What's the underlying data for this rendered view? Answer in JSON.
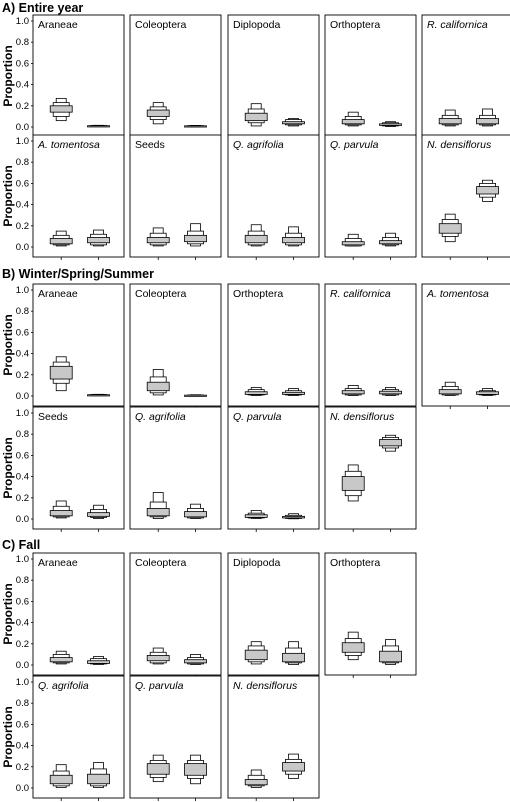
{
  "chart_data": {
    "type": "box",
    "ylabel": "Proportion",
    "y_ticks": [
      "1.0",
      "0.8",
      "0.6",
      "0.4",
      "0.2",
      "0.0"
    ],
    "ylim": [
      0,
      1.0
    ],
    "sections": [
      {
        "title": "A) Entire year",
        "rows": [
          [
            {
              "name": "Araneae",
              "italic": false,
              "boxes": [
                [
                  0.06,
                  0.1,
                  0.14,
                  0.2,
                  0.23,
                  0.27
                ],
                [
                  0.005,
                  0.008,
                  0.01,
                  0.012,
                  0.014,
                  0.016
                ]
              ]
            },
            {
              "name": "Coleoptera",
              "italic": false,
              "boxes": [
                [
                  0.03,
                  0.07,
                  0.1,
                  0.16,
                  0.19,
                  0.23
                ],
                [
                  0.004,
                  0.007,
                  0.009,
                  0.011,
                  0.013,
                  0.015
                ]
              ]
            },
            {
              "name": "Diplopoda",
              "italic": false,
              "boxes": [
                [
                  0.01,
                  0.04,
                  0.06,
                  0.13,
                  0.17,
                  0.22
                ],
                [
                  0.01,
                  0.02,
                  0.03,
                  0.05,
                  0.07,
                  0.08
                ]
              ]
            },
            {
              "name": "Orthoptera",
              "italic": false,
              "boxes": [
                [
                  0.01,
                  0.02,
                  0.03,
                  0.07,
                  0.1,
                  0.14
                ],
                [
                  0.005,
                  0.01,
                  0.015,
                  0.03,
                  0.04,
                  0.05
                ]
              ]
            },
            {
              "name": "R. californica",
              "italic": true,
              "boxes": [
                [
                  0.01,
                  0.02,
                  0.03,
                  0.08,
                  0.11,
                  0.16
                ],
                [
                  0.01,
                  0.02,
                  0.03,
                  0.08,
                  0.11,
                  0.17
                ]
              ]
            }
          ],
          [
            {
              "name": "A. tomentosa",
              "italic": true,
              "boxes": [
                [
                  0.01,
                  0.02,
                  0.03,
                  0.08,
                  0.11,
                  0.15
                ],
                [
                  0.01,
                  0.02,
                  0.04,
                  0.09,
                  0.12,
                  0.16
                ]
              ]
            },
            {
              "name": "Seeds",
              "italic": false,
              "boxes": [
                [
                  0.01,
                  0.02,
                  0.04,
                  0.09,
                  0.13,
                  0.18
                ],
                [
                  0.01,
                  0.03,
                  0.05,
                  0.11,
                  0.15,
                  0.22
                ]
              ]
            },
            {
              "name": "Q. agrifolia",
              "italic": true,
              "boxes": [
                [
                  0.01,
                  0.02,
                  0.04,
                  0.11,
                  0.15,
                  0.21
                ],
                [
                  0.01,
                  0.02,
                  0.04,
                  0.09,
                  0.13,
                  0.19
                ]
              ]
            },
            {
              "name": "Q. parvula",
              "italic": true,
              "boxes": [
                [
                  0.01,
                  0.01,
                  0.02,
                  0.05,
                  0.08,
                  0.12
                ],
                [
                  0.01,
                  0.02,
                  0.03,
                  0.06,
                  0.09,
                  0.13
                ]
              ]
            },
            {
              "name": "N. densiflorus",
              "italic": true,
              "boxes": [
                [
                  0.05,
                  0.1,
                  0.13,
                  0.22,
                  0.26,
                  0.31
                ],
                [
                  0.43,
                  0.47,
                  0.5,
                  0.57,
                  0.6,
                  0.63
                ]
              ]
            }
          ]
        ]
      },
      {
        "title": "B) Winter/Spring/Summer",
        "rows": [
          [
            {
              "name": "Araneae",
              "italic": false,
              "boxes": [
                [
                  0.05,
                  0.12,
                  0.16,
                  0.28,
                  0.32,
                  0.37
                ],
                [
                  0.005,
                  0.008,
                  0.01,
                  0.012,
                  0.014,
                  0.016
                ]
              ]
            },
            {
              "name": "Coleoptera",
              "italic": false,
              "boxes": [
                [
                  0.01,
                  0.03,
                  0.05,
                  0.13,
                  0.18,
                  0.25
                ],
                [
                  0.002,
                  0.004,
                  0.006,
                  0.008,
                  0.01,
                  0.012
                ]
              ]
            },
            {
              "name": "Orthoptera",
              "italic": false,
              "boxes": [
                [
                  0.005,
                  0.01,
                  0.015,
                  0.04,
                  0.06,
                  0.08
                ],
                [
                  0.005,
                  0.01,
                  0.015,
                  0.035,
                  0.05,
                  0.07
                ]
              ]
            },
            {
              "name": "R. californica",
              "italic": true,
              "boxes": [
                [
                  0.005,
                  0.01,
                  0.02,
                  0.05,
                  0.07,
                  0.1
                ],
                [
                  0.005,
                  0.01,
                  0.02,
                  0.045,
                  0.06,
                  0.08
                ]
              ]
            },
            {
              "name": "A. tomentosa",
              "italic": true,
              "boxes": [
                [
                  0.005,
                  0.01,
                  0.02,
                  0.06,
                  0.09,
                  0.13
                ],
                [
                  0.005,
                  0.01,
                  0.015,
                  0.04,
                  0.05,
                  0.07
                ]
              ]
            }
          ],
          [
            {
              "name": "Seeds",
              "italic": false,
              "boxes": [
                [
                  0.01,
                  0.02,
                  0.03,
                  0.08,
                  0.12,
                  0.17
                ],
                [
                  0.005,
                  0.015,
                  0.025,
                  0.06,
                  0.09,
                  0.13
                ]
              ]
            },
            {
              "name": "Q. agrifolia",
              "italic": true,
              "boxes": [
                [
                  0.005,
                  0.02,
                  0.03,
                  0.1,
                  0.16,
                  0.25
                ],
                [
                  0.005,
                  0.01,
                  0.02,
                  0.07,
                  0.1,
                  0.14
                ]
              ]
            },
            {
              "name": "Q. parvula",
              "italic": true,
              "boxes": [
                [
                  0.005,
                  0.01,
                  0.015,
                  0.04,
                  0.055,
                  0.08
                ],
                [
                  0.002,
                  0.005,
                  0.01,
                  0.025,
                  0.035,
                  0.05
                ]
              ]
            },
            {
              "name": "N. densiflorus",
              "italic": true,
              "boxes": [
                [
                  0.17,
                  0.22,
                  0.27,
                  0.4,
                  0.45,
                  0.51
                ],
                [
                  0.64,
                  0.67,
                  0.69,
                  0.75,
                  0.77,
                  0.79
                ]
              ]
            }
          ]
        ]
      },
      {
        "title": "C) Fall",
        "rows": [
          [
            {
              "name": "Araneae",
              "italic": false,
              "boxes": [
                [
                  0.01,
                  0.02,
                  0.03,
                  0.07,
                  0.1,
                  0.13
                ],
                [
                  0.005,
                  0.01,
                  0.015,
                  0.04,
                  0.06,
                  0.08
                ]
              ]
            },
            {
              "name": "Coleoptera",
              "italic": false,
              "boxes": [
                [
                  0.01,
                  0.02,
                  0.04,
                  0.09,
                  0.12,
                  0.16
                ],
                [
                  0.005,
                  0.01,
                  0.02,
                  0.05,
                  0.07,
                  0.1
                ]
              ]
            },
            {
              "name": "Diplopoda",
              "italic": false,
              "boxes": [
                [
                  0.01,
                  0.03,
                  0.05,
                  0.14,
                  0.18,
                  0.22
                ],
                [
                  0.005,
                  0.02,
                  0.03,
                  0.11,
                  0.16,
                  0.22
                ]
              ]
            },
            {
              "name": "Orthoptera",
              "italic": false,
              "boxes": [
                [
                  0.05,
                  0.09,
                  0.12,
                  0.21,
                  0.25,
                  0.31
                ],
                [
                  0.005,
                  0.02,
                  0.03,
                  0.13,
                  0.18,
                  0.24
                ]
              ]
            }
          ],
          [
            {
              "name": "Q. agrifolia",
              "italic": true,
              "boxes": [
                [
                  0.005,
                  0.02,
                  0.04,
                  0.12,
                  0.16,
                  0.22
                ],
                [
                  0.005,
                  0.02,
                  0.04,
                  0.13,
                  0.18,
                  0.24
                ]
              ]
            },
            {
              "name": "Q. parvula",
              "italic": true,
              "boxes": [
                [
                  0.06,
                  0.1,
                  0.13,
                  0.23,
                  0.26,
                  0.31
                ],
                [
                  0.04,
                  0.09,
                  0.12,
                  0.23,
                  0.26,
                  0.31
                ]
              ]
            },
            {
              "name": "N. densiflorus",
              "italic": true,
              "boxes": [
                [
                  0.005,
                  0.02,
                  0.03,
                  0.08,
                  0.12,
                  0.17
                ],
                [
                  0.09,
                  0.13,
                  0.16,
                  0.24,
                  0.27,
                  0.32
                ]
              ]
            }
          ]
        ]
      }
    ]
  },
  "colors": {
    "box_fill": "#c8c8c8",
    "outer_fill": "#ffffff",
    "stroke": "#000000",
    "panel_border": "#000000"
  }
}
